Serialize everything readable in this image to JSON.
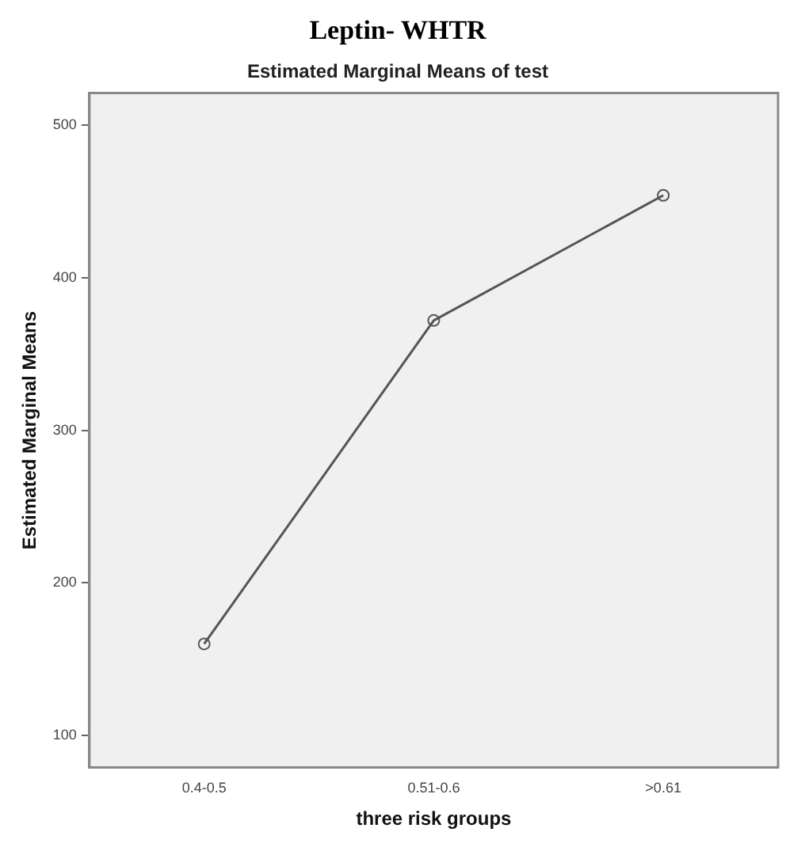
{
  "chart_data": {
    "type": "line",
    "title": "Leptin- WHTR",
    "subtitle": "Estimated Marginal Means of test",
    "xlabel": "three risk groups",
    "ylabel": "Estimated Marginal Means",
    "categories": [
      "0.4-0.5",
      "0.51-0.6",
      ">0.61"
    ],
    "series": [
      {
        "color": "#555555",
        "values": [
          160,
          372,
          454
        ]
      }
    ],
    "ylim": [
      79,
      521
    ],
    "yticks": [
      100,
      200,
      300,
      400,
      500
    ],
    "grid": false,
    "legend": false,
    "marker": "circle",
    "line_style": "solid"
  }
}
